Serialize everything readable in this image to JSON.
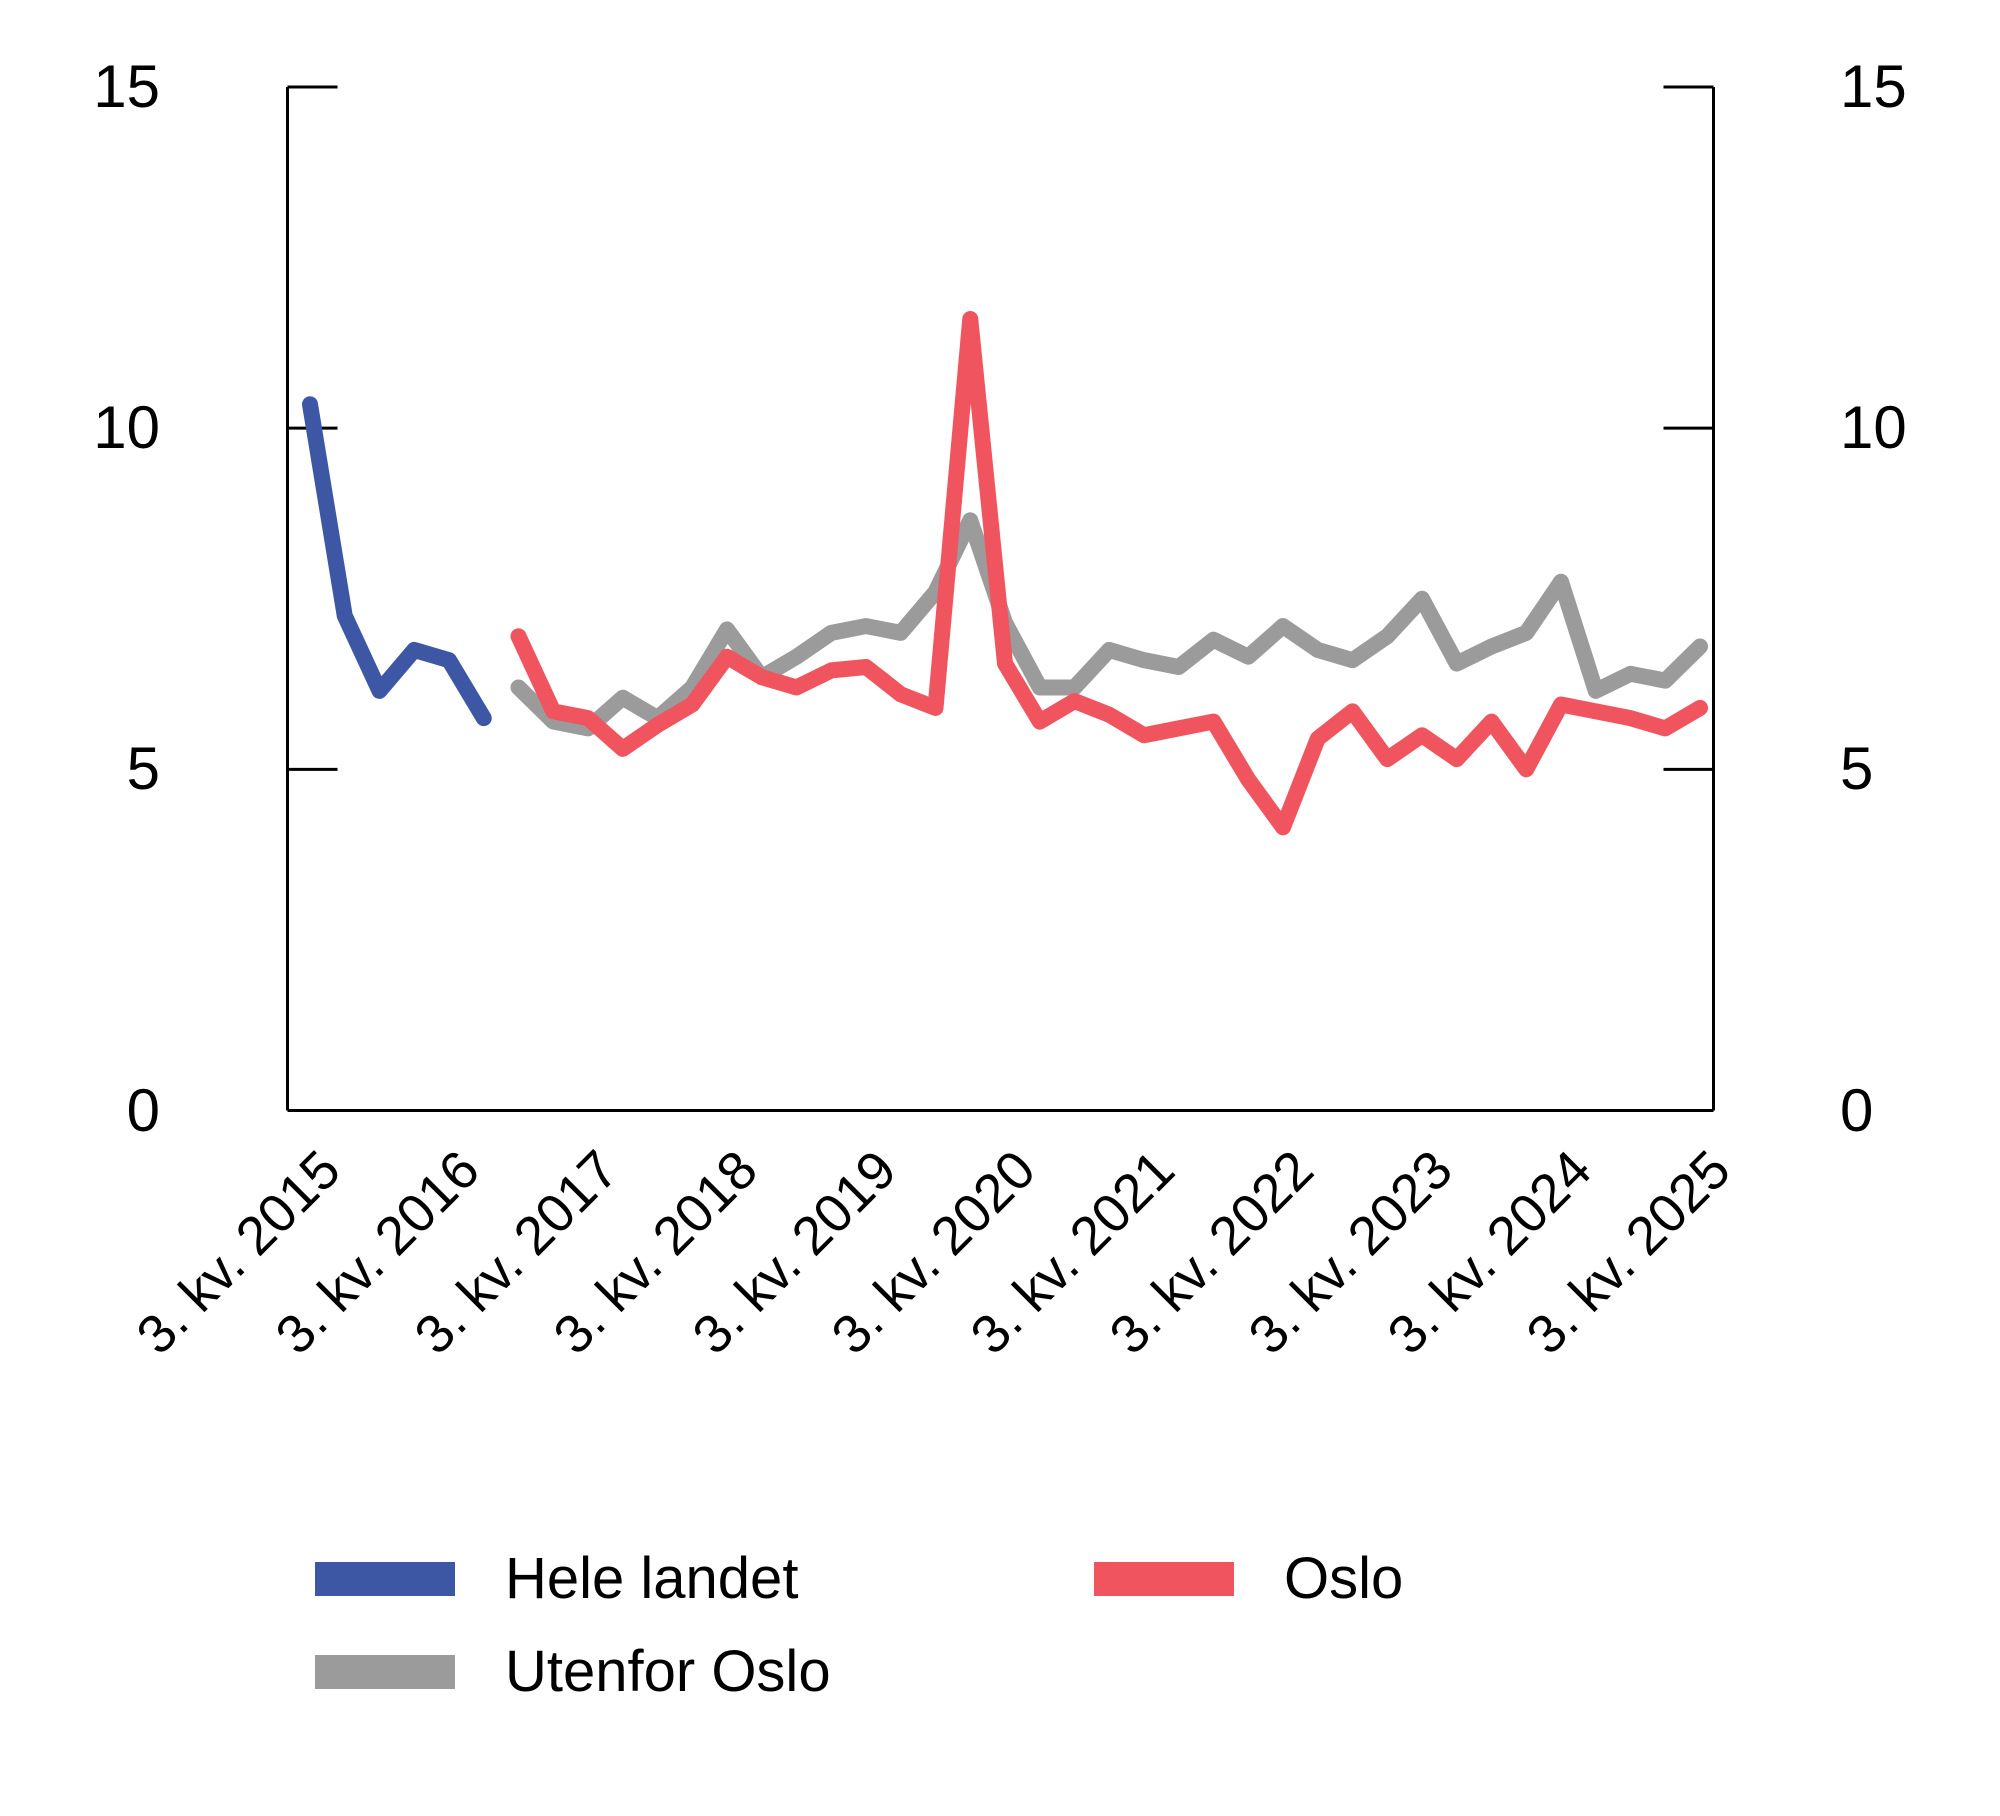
{
  "chart_data": {
    "type": "line",
    "title": "",
    "xlabel": "",
    "ylabel": "",
    "ylim": [
      0,
      15
    ],
    "yticks": [
      0,
      5,
      10,
      15
    ],
    "ytick_labels_left": [
      "0",
      "5",
      "10",
      "15"
    ],
    "ytick_labels_right": [
      "0",
      "5",
      "10",
      "15"
    ],
    "grid": false,
    "frame": "left-right-bottom",
    "n_points": 41,
    "x_unit": "quarter",
    "x_tick_indices": [
      0,
      4,
      8,
      12,
      16,
      20,
      24,
      28,
      32,
      36,
      40
    ],
    "x_tick_labels": [
      "3. kv. 2015",
      "3. kv. 2016",
      "3. kv. 2017",
      "3. kv. 2018",
      "3. kv. 2019",
      "3. kv. 2020",
      "3. kv. 2021",
      "3. kv. 2022",
      "3. kv. 2023",
      "3. kv. 2024",
      "3. kv. 2025"
    ],
    "series": [
      {
        "name": "Hele landet",
        "color": "#3E57A5",
        "start_index": 0,
        "values": [
          10.35,
          7.25,
          6.15,
          6.75,
          6.6,
          5.75
        ]
      },
      {
        "name": "Oslo",
        "color": "#F0555F",
        "start_index": 6,
        "values": [
          6.95,
          5.85,
          5.75,
          5.3,
          5.65,
          5.95,
          6.65,
          6.35,
          6.2,
          6.45,
          6.5,
          6.1,
          5.9,
          11.6,
          6.55,
          5.7,
          6.0,
          5.8,
          5.5,
          5.6,
          5.7,
          4.85,
          4.15,
          5.45,
          5.85,
          5.15,
          5.5,
          5.15,
          5.7,
          5.0,
          5.95,
          5.85,
          5.75,
          5.6,
          5.9
        ]
      },
      {
        "name": "Utenfor Oslo",
        "color": "#9B9B9B",
        "start_index": 6,
        "values": [
          6.2,
          5.7,
          5.6,
          6.05,
          5.75,
          6.2,
          7.05,
          6.35,
          6.65,
          7.0,
          7.1,
          7.0,
          7.6,
          8.65,
          7.15,
          6.2,
          6.2,
          6.75,
          6.6,
          6.5,
          6.9,
          6.65,
          7.1,
          6.75,
          6.6,
          6.95,
          7.5,
          6.55,
          6.8,
          7.0,
          7.75,
          6.15,
          6.4,
          6.3,
          6.8
        ]
      }
    ],
    "legend": {
      "position": "bottom",
      "rows": [
        [
          "Hele landet",
          "Oslo"
        ],
        [
          "Utenfor Oslo"
        ]
      ]
    },
    "axis_color": "#000000",
    "line_width": 16
  }
}
